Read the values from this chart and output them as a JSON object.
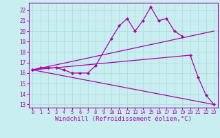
{
  "background_color": "#c8eef0",
  "grid_color": "#b0dde0",
  "line_color": "#aa00aa",
  "xlim": [
    -0.5,
    23.5
  ],
  "ylim": [
    12.7,
    22.7
  ],
  "yticks": [
    13,
    14,
    15,
    16,
    17,
    18,
    19,
    20,
    21,
    22
  ],
  "xticks": [
    0,
    1,
    2,
    3,
    4,
    5,
    6,
    7,
    8,
    9,
    10,
    11,
    12,
    13,
    14,
    15,
    16,
    17,
    18,
    19,
    20,
    21,
    22,
    23
  ],
  "xlabel": "Windchill (Refroidissement éolien,°C)",
  "series_zigzag": {
    "x": [
      0,
      1,
      2,
      3,
      4,
      5,
      6,
      7,
      8,
      10,
      11,
      12,
      13,
      14,
      15,
      16,
      17,
      18,
      19
    ],
    "y": [
      16.3,
      16.5,
      16.5,
      16.5,
      16.3,
      16.0,
      16.0,
      16.0,
      16.7,
      19.3,
      20.5,
      21.2,
      20.0,
      21.0,
      22.3,
      21.0,
      21.2,
      20.0,
      19.5
    ]
  },
  "series_line_up": {
    "x": [
      0,
      23
    ],
    "y": [
      16.3,
      20.0
    ]
  },
  "series_line_down_markers": {
    "x": [
      0,
      20,
      21,
      22,
      23
    ],
    "y": [
      16.3,
      17.7,
      15.6,
      13.9,
      13.0
    ]
  },
  "series_line_down_plain": {
    "x": [
      0,
      23
    ],
    "y": [
      16.3,
      13.0
    ]
  }
}
